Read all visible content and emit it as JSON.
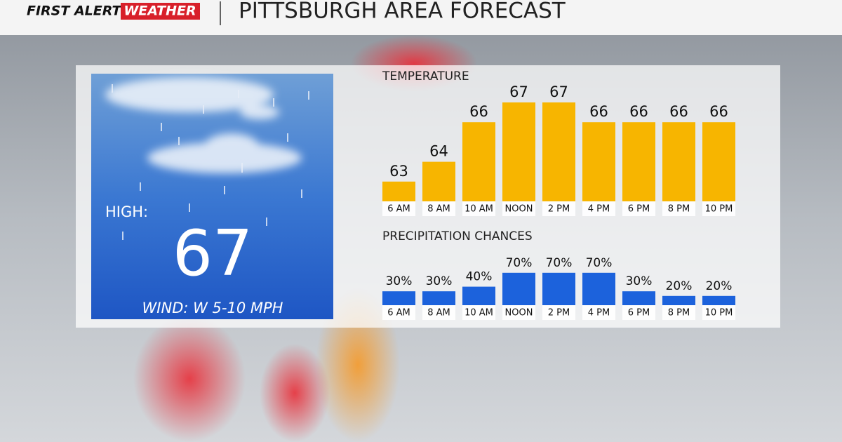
{
  "header": {
    "logo_first": "FIRST ALERT",
    "logo_weather": "WEATHER",
    "title": "PITTSBURGH AREA FORECAST"
  },
  "panel": {
    "high_label": "HIGH:",
    "high_value": "67",
    "wind": "WIND: W 5-10 MPH"
  },
  "chart_data": [
    {
      "type": "bar",
      "title": "TEMPERATURE",
      "categories": [
        "6 AM",
        "8 AM",
        "10 AM",
        "NOON",
        "2 PM",
        "4 PM",
        "6 PM",
        "8 PM",
        "10 PM"
      ],
      "values": [
        63,
        64,
        66,
        67,
        67,
        66,
        66,
        66,
        66
      ],
      "color": "#f7b500",
      "ylim": [
        62,
        67
      ]
    },
    {
      "type": "bar",
      "title": "PRECIPITATION CHANCES",
      "categories": [
        "6 AM",
        "8 AM",
        "10 AM",
        "NOON",
        "2 PM",
        "4 PM",
        "6 PM",
        "8 PM",
        "10 PM"
      ],
      "values": [
        30,
        30,
        40,
        70,
        70,
        70,
        30,
        20,
        20
      ],
      "value_labels": [
        "30%",
        "30%",
        "40%",
        "70%",
        "70%",
        "70%",
        "30%",
        "20%",
        "20%"
      ],
      "color": "#1c62dc",
      "ylim": [
        0,
        100
      ]
    }
  ]
}
